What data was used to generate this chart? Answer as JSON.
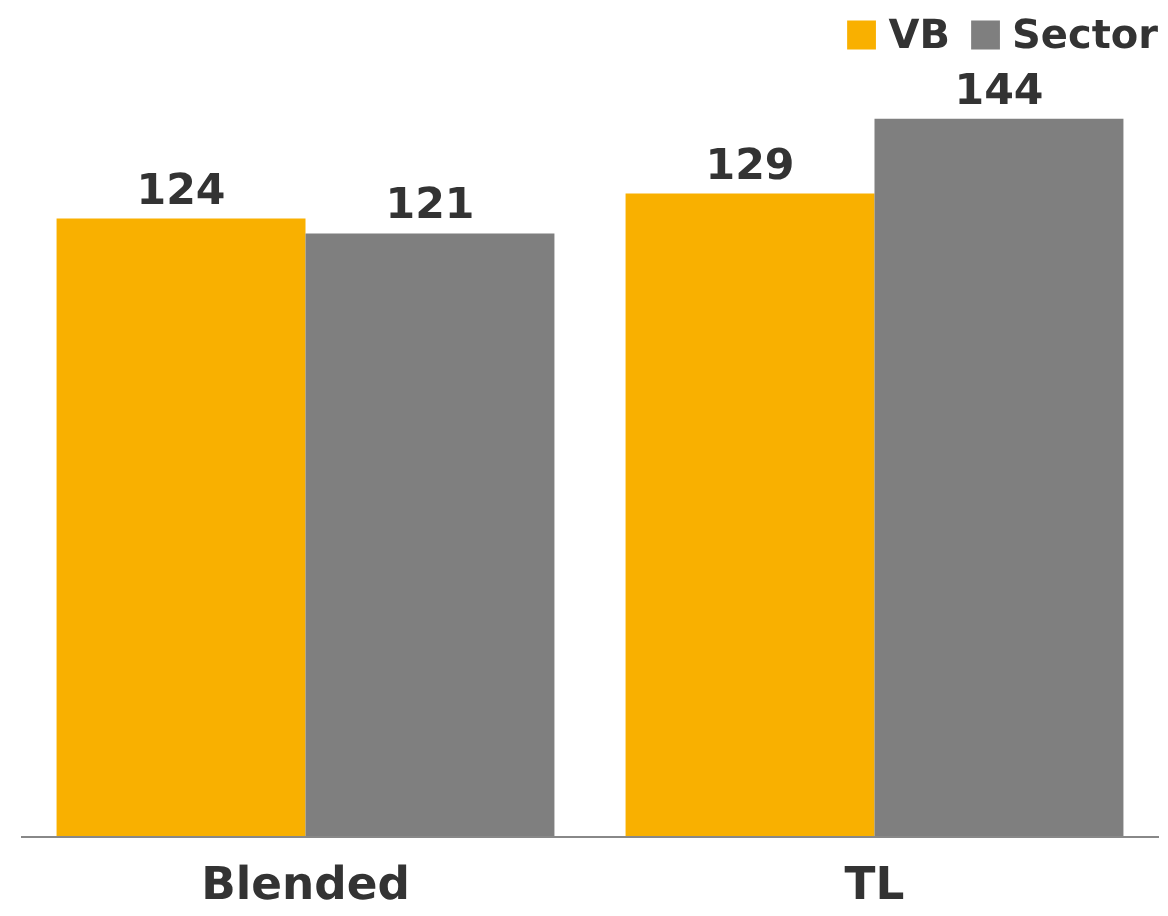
{
  "chart_data": {
    "type": "bar",
    "categories": [
      "Blended",
      "TL"
    ],
    "series": [
      {
        "name": "VB",
        "color": "#f9b000",
        "values": [
          124,
          129
        ]
      },
      {
        "name": "Sector",
        "color": "#7f7f7f",
        "values": [
          121,
          144
        ]
      }
    ],
    "data_labels": true,
    "legend": "top right",
    "grid": false
  }
}
